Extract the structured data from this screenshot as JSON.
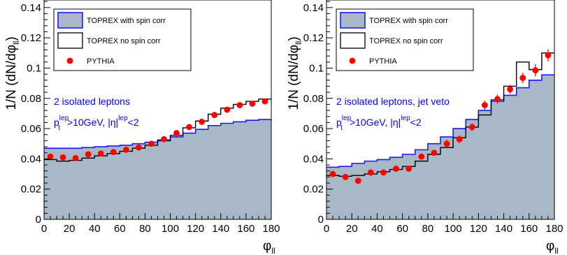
{
  "colors": {
    "fill": "#a8b8c6",
    "spin_line": "#1a1aff",
    "nospin_line": "#000000",
    "marker": "#ff0000",
    "annotation": "#0000ff"
  },
  "chart_data": [
    {
      "type": "histogram",
      "ylabel_parts": {
        "a": "1/N (dN/d",
        "phi": "φ",
        "sub": "ll",
        "b": ")"
      },
      "xlabel_parts": {
        "phi": "φ",
        "sub": "ll"
      },
      "xlim": [
        0,
        180
      ],
      "ylim": [
        0,
        0.145
      ],
      "x_ticks": [
        0,
        20,
        40,
        60,
        80,
        100,
        120,
        140,
        160,
        180
      ],
      "x_tick_labels": [
        "0",
        "20",
        "40",
        "60",
        "80",
        "100",
        "120",
        "140",
        "160",
        "180"
      ],
      "y_ticks": [
        0,
        0.02,
        0.04,
        0.06,
        0.08,
        0.1,
        0.12,
        0.14
      ],
      "y_tick_labels": [
        "0",
        "0.02",
        "0.04",
        "0.06",
        "0.08",
        "0.1",
        "0.12",
        "0.14"
      ],
      "bin_edges": [
        0,
        10,
        20,
        30,
        40,
        50,
        60,
        70,
        80,
        90,
        100,
        110,
        120,
        130,
        140,
        150,
        160,
        170,
        180
      ],
      "legend": {
        "with_spin": "TOPREX with spin corr",
        "no_spin": "TOPREX no spin corr",
        "pythia": "PYTHIA"
      },
      "annotations": {
        "line1": "2 isolated leptons",
        "p": "p",
        "p_sup": "lep",
        "p_sub": "t",
        "mid": ">10GeV, |",
        "eta": "η",
        "eta_bar": "|",
        "eta_sup": "lep",
        "tail": "<2"
      },
      "series": [
        {
          "name": "TOPREX with spin corr",
          "style": "filled-step",
          "values": [
            0.047,
            0.047,
            0.047,
            0.0475,
            0.048,
            0.0485,
            0.049,
            0.05,
            0.051,
            0.0525,
            0.0545,
            0.057,
            0.0595,
            0.062,
            0.0635,
            0.0645,
            0.0655,
            0.066
          ]
        },
        {
          "name": "TOPREX no spin corr",
          "style": "step",
          "values": [
            0.0395,
            0.0385,
            0.039,
            0.0405,
            0.042,
            0.0435,
            0.045,
            0.047,
            0.049,
            0.052,
            0.0555,
            0.0605,
            0.065,
            0.0695,
            0.0735,
            0.076,
            0.078,
            0.0795
          ]
        },
        {
          "name": "PYTHIA",
          "style": "markers",
          "values": [
            0.0415,
            0.041,
            0.0405,
            0.043,
            0.0435,
            0.0445,
            0.046,
            0.0475,
            0.05,
            0.053,
            0.057,
            0.061,
            0.0645,
            0.069,
            0.0725,
            0.0755,
            0.0765,
            0.078
          ]
        }
      ]
    },
    {
      "type": "histogram",
      "ylabel_parts": {
        "a": "1/N (dN/d",
        "phi": "φ",
        "sub": "ll",
        "b": ")"
      },
      "xlabel_parts": {
        "phi": "φ",
        "sub": "ll"
      },
      "xlim": [
        0,
        180
      ],
      "ylim": [
        0,
        0.145
      ],
      "x_ticks": [
        0,
        20,
        40,
        60,
        80,
        100,
        120,
        140,
        160,
        180
      ],
      "x_tick_labels": [
        "0",
        "20",
        "40",
        "60",
        "80",
        "100",
        "120",
        "140",
        "160",
        "180"
      ],
      "y_ticks": [
        0,
        0.02,
        0.04,
        0.06,
        0.08,
        0.1,
        0.12,
        0.14
      ],
      "y_tick_labels": [
        "0",
        "0.02",
        "0.04",
        "0.06",
        "0.08",
        "0.1",
        "0.12",
        "0.14"
      ],
      "bin_edges": [
        0,
        10,
        20,
        30,
        40,
        50,
        60,
        70,
        80,
        90,
        100,
        110,
        120,
        130,
        140,
        150,
        160,
        170,
        180
      ],
      "legend": {
        "with_spin": "TOPREX with spin corr",
        "no_spin": "TOPREX no spin corr",
        "pythia": "PYTHIA"
      },
      "annotations": {
        "line1": "2 isolated leptons, jet veto",
        "p": "p",
        "p_sup": "lep",
        "p_sub": "t",
        "mid": ">10GeV, |",
        "eta": "η",
        "eta_bar": "|",
        "eta_sup": "lep",
        "tail": "<2"
      },
      "series": [
        {
          "name": "TOPREX with spin corr",
          "style": "filled-step",
          "values": [
            0.0345,
            0.035,
            0.037,
            0.0385,
            0.0395,
            0.041,
            0.043,
            0.046,
            0.05,
            0.0545,
            0.06,
            0.066,
            0.072,
            0.078,
            0.082,
            0.087,
            0.092,
            0.0955
          ]
        },
        {
          "name": "TOPREX no spin corr",
          "style": "step",
          "values": [
            0.029,
            0.0285,
            0.029,
            0.03,
            0.0315,
            0.033,
            0.035,
            0.0385,
            0.043,
            0.0475,
            0.054,
            0.061,
            0.069,
            0.079,
            0.088,
            0.104,
            0.099,
            0.11
          ]
        },
        {
          "name": "PYTHIA",
          "style": "markers",
          "values": [
            0.03,
            0.028,
            0.0255,
            0.031,
            0.031,
            0.0335,
            0.0335,
            0.0415,
            0.044,
            0.05,
            0.053,
            0.061,
            0.0755,
            0.0795,
            0.086,
            0.0935,
            0.0985,
            0.1085
          ],
          "errors": [
            0.002,
            0.002,
            0.002,
            0.002,
            0.002,
            0.002,
            0.002,
            0.002,
            0.002,
            0.0025,
            0.0025,
            0.0025,
            0.003,
            0.003,
            0.003,
            0.0035,
            0.004,
            0.004
          ]
        }
      ]
    }
  ]
}
